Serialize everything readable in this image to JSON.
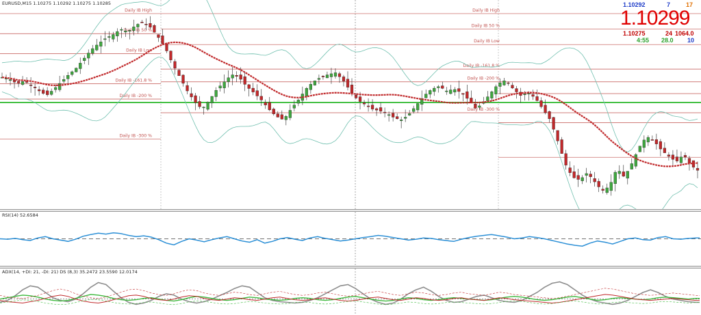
{
  "window": {
    "main_title": "EURUSD,M15  1.10275 1.10292 1.10275 1.10285",
    "rsi_title": "RSI(14) 52.6584",
    "adx_title": "ADX(14, +DI: 21, -DI: 21) DS (8,3) 35.2472 23.5590 12.0174"
  },
  "quote": {
    "ask": "1.10292",
    "ask_a": "7",
    "ask_b": "17",
    "bid_big": "1.10299",
    "bid": "1.10275",
    "bid_a": "24",
    "bid_b": "1064.0",
    "time": "4:55",
    "time_a": "28.0",
    "time_b": "10"
  },
  "colors": {
    "bull": "#3fa73f",
    "bear": "#c2282a",
    "level": "#c0504d",
    "band": "#6fbfae",
    "ma": "#c0282a",
    "green_line": "#44c044",
    "rsi": "#2b8fd6",
    "adx_gray": "#8c8c8c",
    "adx_green": "#3cb83c",
    "adx_red": "#c0282a"
  },
  "chart_data": [
    {
      "type": "candlestick",
      "symbol": "EURUSD",
      "timeframe": "M15",
      "ylim": [
        1.098,
        1.121
      ],
      "grid": false,
      "candles_count": 170,
      "ohlc_close_path": [
        1.1125,
        1.1123,
        1.1118,
        1.1121,
        1.1116,
        1.111,
        1.1105,
        1.1112,
        1.112,
        1.1128,
        1.1135,
        1.1145,
        1.1155,
        1.1162,
        1.1168,
        1.1172,
        1.1178,
        1.1175,
        1.1182,
        1.1186,
        1.118,
        1.117,
        1.1158,
        1.114,
        1.1125,
        1.111,
        1.1098,
        1.109,
        1.11,
        1.1112,
        1.112,
        1.1128,
        1.1125,
        1.1115,
        1.1108,
        1.11,
        1.109,
        1.1082,
        1.1078,
        1.109,
        1.11,
        1.1112,
        1.112,
        1.1125,
        1.1128,
        1.113,
        1.1122,
        1.111,
        1.11,
        1.1095,
        1.109,
        1.1088,
        1.1085,
        1.108,
        1.1078,
        1.1085,
        1.1095,
        1.1105,
        1.1112,
        1.1115,
        1.111,
        1.1112,
        1.1108,
        1.11,
        1.109,
        1.1098,
        1.1108,
        1.1118,
        1.1122,
        1.1112,
        1.1105,
        1.1108,
        1.1102,
        1.109,
        1.1078,
        1.1055,
        1.103,
        1.1015,
        1.1012,
        1.102,
        1.101,
        1.1,
        1.1005,
        1.1025,
        1.1015,
        1.103,
        1.1048,
        1.106,
        1.1055,
        1.1045,
        1.1038,
        1.1032,
        1.104,
        1.1028,
        1.1022,
        1.1035,
        1.104
      ],
      "levels": [
        {
          "label": "Daily IB High",
          "price": 1.1195,
          "side": "left"
        },
        {
          "label": "Daily IB 50 %",
          "price": 1.1173,
          "side": "left"
        },
        {
          "label": "Daily IB Low",
          "price": 1.1151,
          "side": "left"
        },
        {
          "label": "Daily IB -161.8 %",
          "price": 1.1118,
          "side": "left"
        },
        {
          "label": "Daily IB -200 %",
          "price": 1.1101,
          "side": "left"
        },
        {
          "label": "Daily IB -300 %",
          "price": 1.1057,
          "side": "left"
        },
        {
          "label": "Daily IB High",
          "price": 1.1195,
          "side": "right"
        },
        {
          "label": "Daily IB 50 %",
          "price": 1.1178,
          "side": "right"
        },
        {
          "label": "Daily IB Low",
          "price": 1.1161,
          "side": "right"
        },
        {
          "label": "Daily IB -161.8 %",
          "price": 1.1134,
          "side": "right"
        },
        {
          "label": "Daily IB -200 %",
          "price": 1.112,
          "side": "right"
        },
        {
          "label": "Daily IB -300 %",
          "price": 1.1086,
          "side": "right"
        }
      ]
    },
    {
      "type": "line",
      "name": "RSI(14)",
      "ylim": [
        0,
        100
      ],
      "level": 50,
      "values": [
        50,
        49,
        51,
        48,
        46,
        52,
        55,
        50,
        47,
        44,
        49,
        56,
        60,
        63,
        61,
        64,
        62,
        58,
        55,
        57,
        54,
        48,
        40,
        36,
        44,
        50,
        47,
        43,
        48,
        52,
        55,
        50,
        45,
        42,
        48,
        40,
        44,
        50,
        53,
        49,
        46,
        52,
        55,
        51,
        48,
        45,
        47,
        50,
        53,
        55,
        58,
        56,
        53,
        50,
        47,
        49,
        52,
        51,
        48,
        46,
        44,
        49,
        53,
        56,
        58,
        60,
        57,
        54,
        50,
        52,
        55,
        53,
        50,
        46,
        42,
        38,
        35,
        33,
        40,
        45,
        42,
        38,
        44,
        50,
        52,
        48,
        47,
        53,
        55,
        50,
        49,
        51,
        52
      ]
    },
    {
      "type": "line",
      "name": "ADX",
      "ylim": [
        0,
        60
      ],
      "series": [
        {
          "values": [
            15,
            18,
            25,
            34,
            40,
            38,
            30,
            22,
            18,
            16,
            20,
            28,
            38,
            45,
            42,
            32,
            22,
            15,
            12,
            14,
            18,
            24,
            28,
            26,
            20,
            16,
            14,
            16,
            20,
            25,
            30,
            36,
            40,
            38,
            30,
            22,
            18,
            16,
            15,
            14,
            15,
            18,
            22,
            28,
            34,
            40,
            42,
            36,
            28,
            20,
            15,
            12,
            14,
            20,
            28,
            34,
            38,
            32,
            24,
            18,
            15,
            16,
            20,
            24,
            26,
            22,
            18,
            16,
            15,
            18,
            24,
            30,
            38,
            44,
            46,
            42,
            34,
            26,
            20,
            16,
            14,
            12,
            14,
            18,
            24,
            30,
            34,
            30,
            24,
            20,
            18,
            16,
            15
          ]
        },
        {
          "values": [
            20,
            22,
            24,
            26,
            25,
            23,
            20,
            18,
            17,
            18,
            21,
            24,
            27,
            26,
            24,
            21,
            19,
            18,
            19,
            21,
            22,
            20,
            18,
            17,
            19,
            22,
            24,
            23,
            21,
            19,
            18,
            19,
            21,
            23,
            22,
            20,
            19,
            18,
            19,
            21,
            22,
            21,
            19,
            18,
            19,
            21,
            23,
            24,
            22,
            20,
            18,
            17,
            18,
            20,
            22,
            21,
            19,
            18,
            19,
            21,
            22,
            21,
            20,
            19,
            18,
            19,
            21,
            23,
            24,
            23,
            21,
            19,
            18,
            19,
            21,
            23,
            24,
            22,
            20,
            18,
            19,
            21,
            22,
            21,
            20,
            19,
            20,
            22,
            23,
            22,
            21,
            20,
            21
          ]
        },
        {
          "values": [
            18,
            16,
            15,
            14,
            16,
            18,
            21,
            24,
            26,
            24,
            20,
            17,
            15,
            14,
            16,
            19,
            22,
            25,
            26,
            24,
            21,
            19,
            18,
            20,
            23,
            25,
            24,
            21,
            19,
            18,
            20,
            22,
            21,
            19,
            18,
            20,
            22,
            23,
            21,
            19,
            18,
            19,
            21,
            22,
            20,
            18,
            17,
            18,
            20,
            22,
            23,
            21,
            19,
            18,
            20,
            22,
            21,
            19,
            18,
            19,
            21,
            22,
            20,
            19,
            18,
            20,
            22,
            21,
            19,
            18,
            17,
            16,
            15,
            14,
            15,
            17,
            19,
            21,
            23,
            25,
            27,
            26,
            24,
            22,
            20,
            19,
            18,
            19,
            20,
            21,
            20,
            19,
            18
          ]
        }
      ]
    }
  ]
}
